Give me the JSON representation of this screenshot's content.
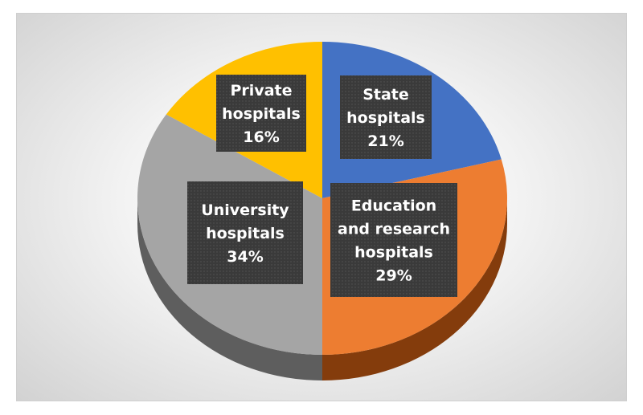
{
  "chart_data": {
    "type": "pie",
    "title": "",
    "slices": [
      {
        "label": "State hospitals",
        "value": 21,
        "value_label": "21%",
        "color": "#4472C4",
        "side_color": "#2f528f"
      },
      {
        "label": "Education and research hospitals",
        "value": 29,
        "value_label": "29%",
        "color": "#ED7D31",
        "side_color": "#843c0c"
      },
      {
        "label": "University hospitals",
        "value": 34,
        "value_label": "34%",
        "color": "#A5A5A5",
        "side_color": "#5e5e5e"
      },
      {
        "label": "Private hospitals",
        "value": 16,
        "value_label": "16%",
        "color": "#FFC000",
        "side_color": "#bf9000"
      }
    ],
    "style": "3d",
    "data_labels": [
      "Private hospitals",
      "State hospitals",
      "Education and research hospitals",
      "University hospitals"
    ],
    "legend": "none"
  }
}
